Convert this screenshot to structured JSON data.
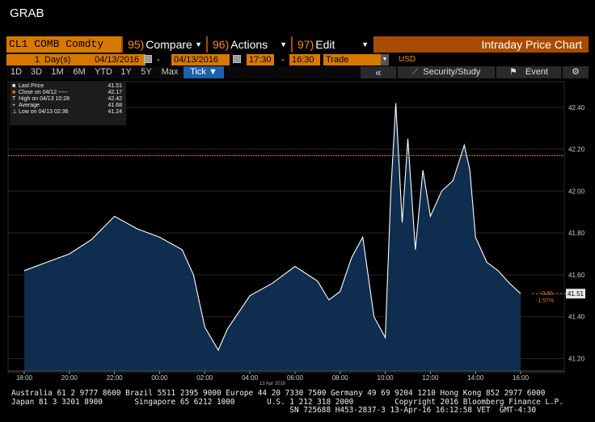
{
  "window": {
    "title": "GRAB"
  },
  "command_bar": {
    "ticker": "CL1 COMB Comdty",
    "compare": {
      "num": "95)",
      "label": "Compare"
    },
    "actions": {
      "num": "96)",
      "label": "Actions"
    },
    "edit": {
      "num": "97)",
      "label": "Edit"
    },
    "title": "Intraday Price Chart"
  },
  "params": {
    "period_count": "1",
    "period_unit": "Day(s)",
    "start_date": "04/13/2016",
    "dash": "-",
    "end_date": "04/13/2016",
    "start_time": "17:30",
    "time_dash": "-",
    "end_time": "16:30",
    "event_type": "Trade",
    "currency": "USD"
  },
  "toolbar": {
    "ranges": [
      "1D",
      "3D",
      "1M",
      "6M",
      "YTD",
      "1Y",
      "5Y",
      "Max"
    ],
    "tick": "Tick",
    "collapse": "«",
    "security_study": "Security/Study",
    "event": "Event"
  },
  "legend": [
    {
      "sym": "■",
      "label": "Last Price",
      "value": "41.51"
    },
    {
      "sym": "■",
      "label": "Close on 04/12 -----",
      "value": "42.17"
    },
    {
      "sym": "T",
      "label": "High on 04/13 10:28",
      "value": "42.42"
    },
    {
      "sym": "+",
      "label": "Average",
      "value": "41.68"
    },
    {
      "sym": "⊥",
      "label": "Low on 04/13 02:36",
      "value": "41.24"
    }
  ],
  "chart_data": {
    "type": "area",
    "series": [
      {
        "name": "Last Price",
        "x": [
          "18:00",
          "19:00",
          "20:00",
          "21:00",
          "22:00",
          "23:00",
          "00:00",
          "01:00",
          "01:30",
          "02:00",
          "02:36",
          "03:00",
          "04:00",
          "05:00",
          "06:00",
          "07:00",
          "07:30",
          "08:00",
          "08:30",
          "09:00",
          "09:30",
          "10:00",
          "10:15",
          "10:28",
          "10:45",
          "11:00",
          "11:20",
          "11:40",
          "12:00",
          "12:30",
          "13:00",
          "13:30",
          "13:45",
          "14:00",
          "14:30",
          "15:00",
          "15:30",
          "16:00"
        ],
        "values": [
          41.62,
          41.66,
          41.7,
          41.77,
          41.88,
          41.82,
          41.78,
          41.72,
          41.6,
          41.35,
          41.24,
          41.34,
          41.5,
          41.56,
          41.64,
          41.57,
          41.48,
          41.52,
          41.68,
          41.78,
          41.4,
          41.3,
          42.0,
          42.42,
          41.85,
          42.25,
          41.72,
          42.1,
          41.88,
          42.0,
          42.05,
          42.22,
          42.1,
          41.78,
          41.66,
          41.62,
          41.56,
          41.51
        ]
      }
    ],
    "x_ticks": [
      "18:00",
      "20:00",
      "22:00",
      "00:00",
      "02:00",
      "04:00",
      "06:00",
      "08:00",
      "10:00",
      "12:00",
      "14:00",
      "16:00"
    ],
    "x_date_label": "13 Apr 2016",
    "y_ticks": [
      "42.40",
      "42.20",
      "42.00",
      "41.80",
      "41.60",
      "41.40",
      "41.20"
    ],
    "ylim": [
      41.14,
      42.5
    ],
    "reference_line": {
      "label": "Close on 04/12",
      "value": 42.17
    },
    "last_price_label": "41.51",
    "change": "-0.66",
    "change_pct": "-1.57%",
    "colors": {
      "fill": "#0f2d4e",
      "line": "#ffffff",
      "close_line": "#e07a1a",
      "tag": "#e8e8e8"
    }
  },
  "footer": {
    "line1": "Australia 61 2 9777 8600 Brazil 5511 2395 9000 Europe 44 20 7330 7500 Germany 49 69 9204 1210 Hong Kong 852 2977 6000",
    "line2": "Japan 81 3 3201 8900       Singapore 65 6212 1000       U.S. 1 212 318 2000         Copyright 2016 Bloomberg Finance L.P.",
    "line3": "                                                             SN 725688 H453-2837-3 13-Apr-16 16:12:58 VET  GMT-4:30"
  }
}
